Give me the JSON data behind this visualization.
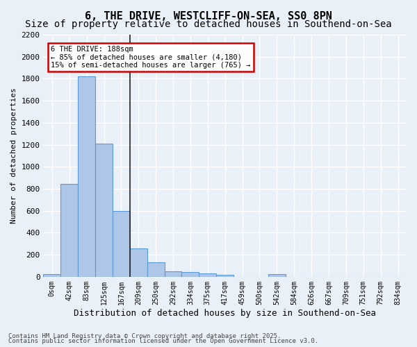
{
  "title1": "6, THE DRIVE, WESTCLIFF-ON-SEA, SS0 8PN",
  "title2": "Size of property relative to detached houses in Southend-on-Sea",
  "xlabel": "Distribution of detached houses by size in Southend-on-Sea",
  "ylabel": "Number of detached properties",
  "bar_values": [
    25,
    845,
    1820,
    1210,
    600,
    260,
    130,
    50,
    40,
    30,
    20,
    0,
    0,
    25,
    0,
    0,
    0,
    0,
    0,
    0,
    0
  ],
  "bar_labels": [
    "0sqm",
    "42sqm",
    "83sqm",
    "125sqm",
    "167sqm",
    "209sqm",
    "250sqm",
    "292sqm",
    "334sqm",
    "375sqm",
    "417sqm",
    "459sqm",
    "500sqm",
    "542sqm",
    "584sqm",
    "626sqm",
    "667sqm",
    "709sqm",
    "751sqm",
    "792sqm",
    "834sqm"
  ],
  "ylim": [
    0,
    2200
  ],
  "yticks": [
    0,
    200,
    400,
    600,
    800,
    1000,
    1200,
    1400,
    1600,
    1800,
    2000,
    2200
  ],
  "bar_color": "#aec6e8",
  "bar_edge_color": "#5b9bd5",
  "vline_x": 4.5,
  "annotation_text": "6 THE DRIVE: 188sqm\n← 85% of detached houses are smaller (4,180)\n15% of semi-detached houses are larger (765) →",
  "annotation_box_color": "#ffffff",
  "annotation_box_edge": "#cc0000",
  "footer1": "Contains HM Land Registry data © Crown copyright and database right 2025.",
  "footer2": "Contains public sector information licensed under the Open Government Licence v3.0.",
  "bg_color": "#eaf0f8",
  "plot_bg_color": "#eaf0f8",
  "grid_color": "#ffffff",
  "title_fontsize": 11,
  "subtitle_fontsize": 10
}
